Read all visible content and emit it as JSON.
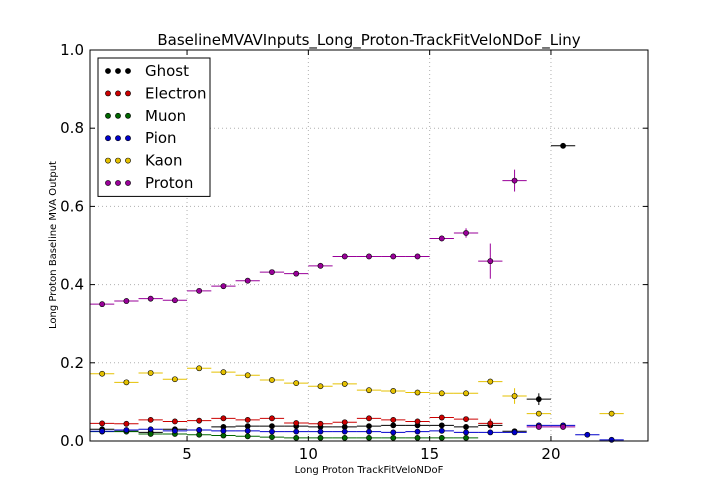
{
  "chart_data": {
    "type": "scatter",
    "title": "BaselineMVAVInputs_Long_Proton-TrackFitVeloNDoF_Liny",
    "xlabel": "Long Proton TrackFitVeloNDoF",
    "ylabel": "Long Proton Baseline MVA Output",
    "xlim": [
      1,
      24
    ],
    "ylim": [
      0,
      1.0
    ],
    "xticks": [
      5,
      10,
      15,
      20
    ],
    "xtick_labels": [
      "5",
      "10",
      "15",
      "20"
    ],
    "yticks": [
      0.0,
      0.2,
      0.4,
      0.6,
      0.8,
      1.0
    ],
    "ytick_labels": [
      "0.0",
      "0.2",
      "0.4",
      "0.6",
      "0.8",
      "1.0"
    ],
    "grid": true,
    "legend_position": "top-left",
    "x_bin_half_width": 0.5,
    "series": [
      {
        "name": "Ghost",
        "color": "#000000",
        "x": [
          1.5,
          2.5,
          3.5,
          4.5,
          5.5,
          6.5,
          7.5,
          8.5,
          9.5,
          10.5,
          11.5,
          12.5,
          13.5,
          14.5,
          15.5,
          16.5,
          17.5,
          18.5,
          19.5,
          20.5
        ],
        "y": [
          0.03,
          0.025,
          0.022,
          0.03,
          0.028,
          0.036,
          0.038,
          0.038,
          0.038,
          0.036,
          0.036,
          0.038,
          0.04,
          0.04,
          0.04,
          0.036,
          0.04,
          0.025,
          0.107,
          0.755
        ],
        "yerr": [
          0.003,
          0.003,
          0.003,
          0.003,
          0.003,
          0.003,
          0.003,
          0.003,
          0.003,
          0.003,
          0.003,
          0.003,
          0.004,
          0.004,
          0.004,
          0.005,
          0.006,
          0.006,
          0.015,
          0.0
        ]
      },
      {
        "name": "Electron",
        "color": "#cc0000",
        "x": [
          1.5,
          2.5,
          3.5,
          4.5,
          5.5,
          6.5,
          7.5,
          8.5,
          9.5,
          10.5,
          11.5,
          12.5,
          13.5,
          14.5,
          15.5,
          16.5,
          17.5
        ],
        "y": [
          0.045,
          0.044,
          0.054,
          0.05,
          0.052,
          0.058,
          0.054,
          0.058,
          0.046,
          0.044,
          0.048,
          0.058,
          0.054,
          0.05,
          0.06,
          0.056,
          0.045
        ],
        "yerr": [
          0.003,
          0.003,
          0.003,
          0.003,
          0.003,
          0.003,
          0.003,
          0.003,
          0.003,
          0.003,
          0.003,
          0.004,
          0.004,
          0.004,
          0.005,
          0.006,
          0.012
        ]
      },
      {
        "name": "Muon",
        "color": "#006600",
        "x": [
          1.5,
          2.5,
          3.5,
          4.5,
          5.5,
          6.5,
          7.5,
          8.5,
          9.5,
          10.5,
          11.5,
          12.5,
          13.5,
          14.5,
          15.5,
          16.5
        ],
        "y": [
          0.024,
          0.024,
          0.018,
          0.018,
          0.016,
          0.014,
          0.012,
          0.01,
          0.008,
          0.008,
          0.008,
          0.008,
          0.008,
          0.008,
          0.008,
          0.008
        ],
        "yerr": [
          0.002,
          0.002,
          0.002,
          0.002,
          0.002,
          0.002,
          0.002,
          0.002,
          0.002,
          0.002,
          0.002,
          0.002,
          0.002,
          0.002,
          0.002,
          0.002
        ]
      },
      {
        "name": "Pion",
        "color": "#0000cc",
        "x": [
          1.5,
          2.5,
          3.5,
          4.5,
          5.5,
          6.5,
          7.5,
          8.5,
          9.5,
          10.5,
          11.5,
          12.5,
          13.5,
          14.5,
          15.5,
          16.5,
          17.5,
          18.5,
          19.5,
          20.5,
          21.5,
          22.5
        ],
        "y": [
          0.025,
          0.028,
          0.03,
          0.026,
          0.028,
          0.026,
          0.026,
          0.024,
          0.024,
          0.024,
          0.024,
          0.024,
          0.022,
          0.024,
          0.026,
          0.022,
          0.022,
          0.022,
          0.04,
          0.04,
          0.016,
          0.003
        ],
        "yerr": [
          0.002,
          0.002,
          0.002,
          0.002,
          0.002,
          0.002,
          0.002,
          0.002,
          0.002,
          0.002,
          0.002,
          0.002,
          0.002,
          0.002,
          0.002,
          0.002,
          0.003,
          0.003,
          0.004,
          0.004,
          0.004,
          0.002
        ]
      },
      {
        "name": "Kaon",
        "color": "#e5c100",
        "x": [
          1.5,
          2.5,
          3.5,
          4.5,
          5.5,
          6.5,
          7.5,
          8.5,
          9.5,
          10.5,
          11.5,
          12.5,
          13.5,
          14.5,
          15.5,
          16.5,
          17.5,
          18.5,
          19.5,
          22.5
        ],
        "y": [
          0.172,
          0.15,
          0.174,
          0.158,
          0.186,
          0.176,
          0.168,
          0.156,
          0.148,
          0.14,
          0.146,
          0.13,
          0.128,
          0.124,
          0.122,
          0.122,
          0.152,
          0.115,
          0.07,
          0.07
        ],
        "yerr": [
          0.004,
          0.004,
          0.004,
          0.004,
          0.004,
          0.004,
          0.004,
          0.004,
          0.004,
          0.004,
          0.004,
          0.004,
          0.004,
          0.004,
          0.004,
          0.004,
          0.006,
          0.02,
          0.003,
          0.003
        ]
      },
      {
        "name": "Proton",
        "color": "#990099",
        "x": [
          1.5,
          2.5,
          3.5,
          4.5,
          5.5,
          6.5,
          7.5,
          8.5,
          9.5,
          10.5,
          11.5,
          12.5,
          13.5,
          14.5,
          15.5,
          16.5,
          17.5,
          18.5,
          19.5,
          20.5
        ],
        "y": [
          0.35,
          0.358,
          0.364,
          0.36,
          0.384,
          0.396,
          0.41,
          0.432,
          0.428,
          0.448,
          0.472,
          0.472,
          0.472,
          0.472,
          0.518,
          0.532,
          0.46,
          0.666,
          0.036,
          0.036
        ],
        "yerr": [
          0.004,
          0.004,
          0.004,
          0.004,
          0.004,
          0.004,
          0.004,
          0.004,
          0.004,
          0.004,
          0.004,
          0.004,
          0.005,
          0.006,
          0.007,
          0.012,
          0.045,
          0.028,
          0.004,
          0.004
        ]
      }
    ]
  }
}
